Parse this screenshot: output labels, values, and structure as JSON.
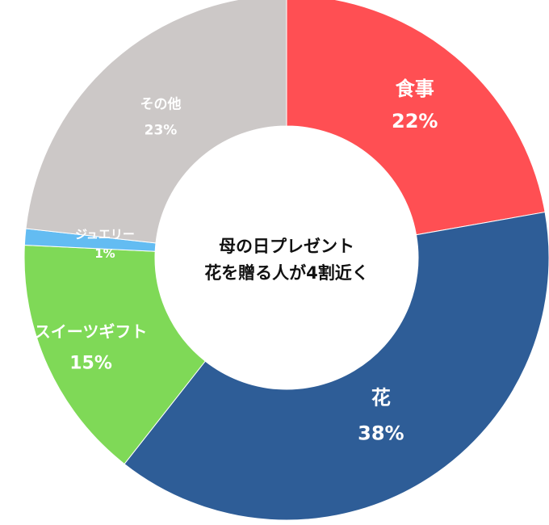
{
  "chart_data": {
    "type": "pie",
    "title": "母の日プレゼント",
    "subtitle": "花を贈る人が4割近く",
    "series": [
      {
        "name": "食事",
        "value": 22,
        "label": "22%",
        "color": "#ff4f53"
      },
      {
        "name": "花",
        "value": 38,
        "label": "38%",
        "color": "#2e5d97"
      },
      {
        "name": "スイーツギフト",
        "value": 15,
        "label": "15%",
        "color": "#7fd957"
      },
      {
        "name": "ジュエリー",
        "value": 1,
        "label": "1%",
        "color": "#63bcf2"
      },
      {
        "name": "その他",
        "value": 23,
        "label": "23%",
        "color": "#ccc8c7"
      }
    ]
  }
}
